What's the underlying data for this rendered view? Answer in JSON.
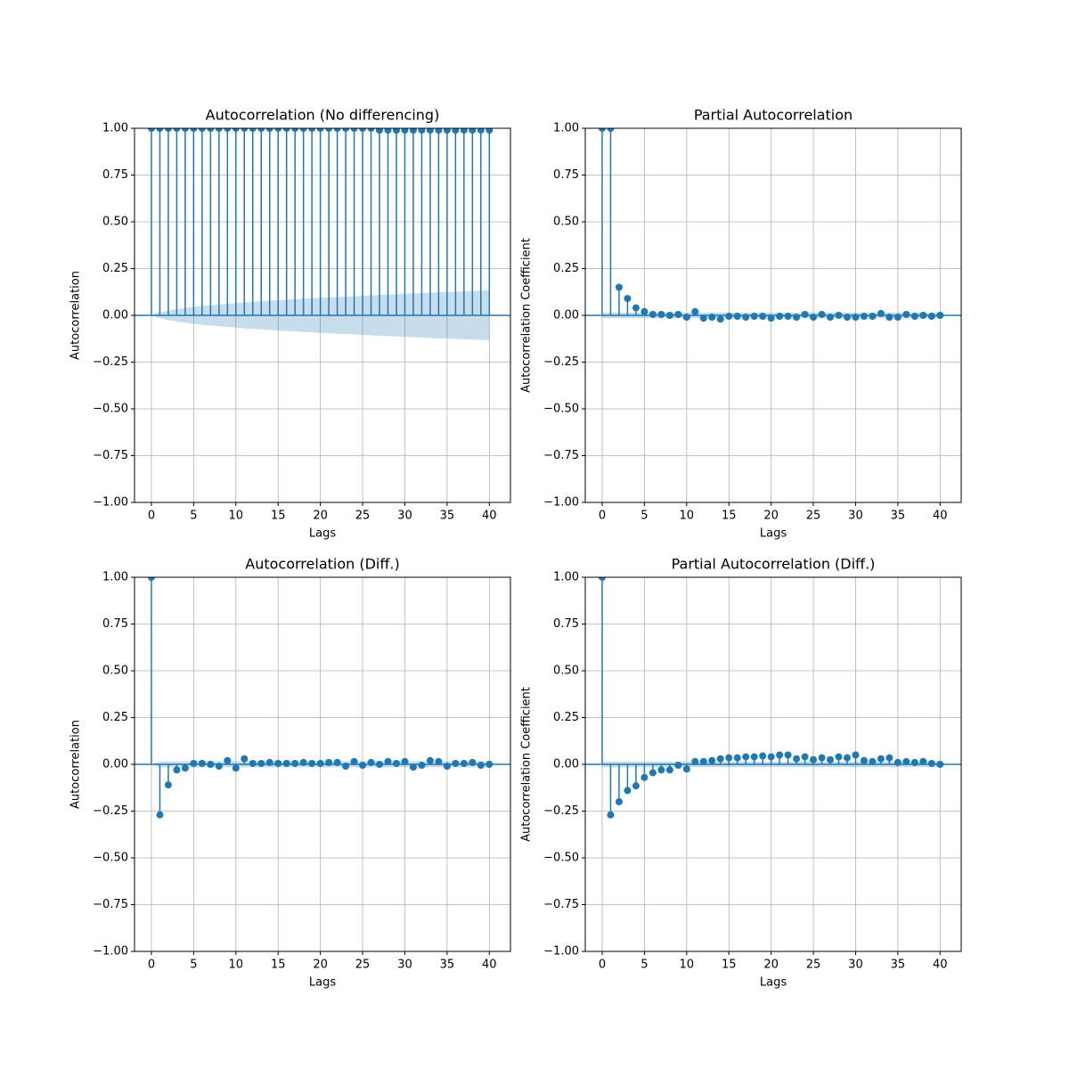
{
  "chart_data": [
    {
      "type": "stem",
      "title": "Autocorrelation (No differencing)",
      "xlabel": "Lags",
      "ylabel": "Autocorrelation",
      "x": [
        0,
        1,
        2,
        3,
        4,
        5,
        6,
        7,
        8,
        9,
        10,
        11,
        12,
        13,
        14,
        15,
        16,
        17,
        18,
        19,
        20,
        21,
        22,
        23,
        24,
        25,
        26,
        27,
        28,
        29,
        30,
        31,
        32,
        33,
        34,
        35,
        36,
        37,
        38,
        39,
        40
      ],
      "values": [
        1,
        1,
        1,
        1,
        1,
        1,
        1,
        1,
        1,
        1,
        1,
        1,
        1,
        1,
        1,
        1,
        1,
        1,
        1,
        1,
        1,
        1,
        1,
        1,
        1,
        1,
        1,
        0.99,
        0.99,
        0.99,
        0.99,
        0.99,
        0.99,
        0.99,
        0.99,
        0.99,
        0.99,
        0.99,
        0.99,
        0.99,
        0.99
      ],
      "confidence_band": [
        0,
        0.015,
        0.026,
        0.034,
        0.04,
        0.045,
        0.05,
        0.054,
        0.058,
        0.062,
        0.065,
        0.069,
        0.072,
        0.075,
        0.078,
        0.081,
        0.084,
        0.086,
        0.089,
        0.091,
        0.094,
        0.096,
        0.098,
        0.1,
        0.102,
        0.105,
        0.107,
        0.109,
        0.111,
        0.113,
        0.115,
        0.117,
        0.119,
        0.121,
        0.123,
        0.124,
        0.126,
        0.128,
        0.13,
        0.132,
        0.133
      ],
      "color": "#1f77b4",
      "grid": true,
      "xlim": [
        -2,
        42.5
      ],
      "ylim": [
        -1,
        1
      ],
      "xticks": [
        0,
        5,
        10,
        15,
        20,
        25,
        30,
        35,
        40
      ],
      "yticks": [
        {
          "value": -1,
          "label": "−1.00"
        },
        {
          "value": -0.75,
          "label": "−0.75"
        },
        {
          "value": -0.5,
          "label": "−0.50"
        },
        {
          "value": -0.25,
          "label": "−0.25"
        },
        {
          "value": 0,
          "label": "0.00"
        },
        {
          "value": 0.25,
          "label": "0.25"
        },
        {
          "value": 0.5,
          "label": "0.50"
        },
        {
          "value": 0.75,
          "label": "0.75"
        },
        {
          "value": 1,
          "label": "1.00"
        }
      ]
    },
    {
      "type": "stem",
      "title": "Partial Autocorrelation",
      "xlabel": "Lags",
      "ylabel": "Autocorrelation Coefficient",
      "x": [
        0,
        1,
        2,
        3,
        4,
        5,
        6,
        7,
        8,
        9,
        10,
        11,
        12,
        13,
        14,
        15,
        16,
        17,
        18,
        19,
        20,
        21,
        22,
        23,
        24,
        25,
        26,
        27,
        28,
        29,
        30,
        31,
        32,
        33,
        34,
        35,
        36,
        37,
        38,
        39,
        40
      ],
      "values": [
        1,
        1,
        0.15,
        0.09,
        0.04,
        0.02,
        0.005,
        0.005,
        0,
        0.005,
        -0.01,
        0.02,
        -0.015,
        -0.01,
        -0.02,
        -0.005,
        -0.005,
        -0.01,
        -0.005,
        -0.005,
        -0.015,
        -0.005,
        -0.005,
        -0.01,
        0.005,
        -0.01,
        0.005,
        -0.01,
        0,
        -0.01,
        -0.01,
        -0.005,
        -0.005,
        0.01,
        -0.01,
        -0.01,
        0.005,
        -0.005,
        0,
        -0.005,
        0
      ],
      "confidence_band": [
        0.015,
        0.015,
        0.015,
        0.015,
        0.015,
        0.015,
        0.015,
        0.015,
        0.015,
        0.015,
        0.015,
        0.015,
        0.015,
        0.015,
        0.015,
        0.015,
        0.015,
        0.015,
        0.015,
        0.015,
        0.015,
        0.015,
        0.015,
        0.015,
        0.015,
        0.015,
        0.015,
        0.015,
        0.015,
        0.015,
        0.015,
        0.015,
        0.015,
        0.015,
        0.015,
        0.015,
        0.015,
        0.015,
        0.015,
        0.015,
        0.015
      ],
      "color": "#1f77b4",
      "grid": true,
      "xlim": [
        -2,
        42.5
      ],
      "ylim": [
        -1,
        1
      ],
      "xticks": [
        0,
        5,
        10,
        15,
        20,
        25,
        30,
        35,
        40
      ],
      "yticks": [
        {
          "value": -1,
          "label": "−1.00"
        },
        {
          "value": -0.75,
          "label": "−0.75"
        },
        {
          "value": -0.5,
          "label": "−0.50"
        },
        {
          "value": -0.25,
          "label": "−0.25"
        },
        {
          "value": 0,
          "label": "0.00"
        },
        {
          "value": 0.25,
          "label": "0.25"
        },
        {
          "value": 0.5,
          "label": "0.50"
        },
        {
          "value": 0.75,
          "label": "0.75"
        },
        {
          "value": 1,
          "label": "1.00"
        }
      ]
    },
    {
      "type": "stem",
      "title": "Autocorrelation (Diff.)",
      "xlabel": "Lags",
      "ylabel": "Autocorrelation",
      "x": [
        0,
        1,
        2,
        3,
        4,
        5,
        6,
        7,
        8,
        9,
        10,
        11,
        12,
        13,
        14,
        15,
        16,
        17,
        18,
        19,
        20,
        21,
        22,
        23,
        24,
        25,
        26,
        27,
        28,
        29,
        30,
        31,
        32,
        33,
        34,
        35,
        36,
        37,
        38,
        39,
        40
      ],
      "values": [
        1,
        -0.27,
        -0.11,
        -0.03,
        -0.02,
        0.005,
        0.005,
        0,
        -0.01,
        0.02,
        -0.02,
        0.03,
        0.005,
        0.005,
        0.01,
        0.005,
        0.005,
        0.005,
        0.01,
        0.005,
        0.005,
        0.01,
        0.01,
        -0.01,
        0.015,
        -0.005,
        0.01,
        0,
        0.015,
        0.005,
        0.015,
        -0.015,
        -0.005,
        0.02,
        0.015,
        -0.01,
        0.005,
        0.005,
        0.01,
        -0.005,
        0
      ],
      "confidence_band": [
        0,
        0.015,
        0.016,
        0.016,
        0.016,
        0.016,
        0.016,
        0.016,
        0.016,
        0.016,
        0.016,
        0.016,
        0.016,
        0.016,
        0.016,
        0.016,
        0.016,
        0.016,
        0.016,
        0.016,
        0.016,
        0.016,
        0.016,
        0.016,
        0.016,
        0.016,
        0.016,
        0.016,
        0.016,
        0.016,
        0.016,
        0.016,
        0.016,
        0.016,
        0.016,
        0.016,
        0.016,
        0.016,
        0.016,
        0.016,
        0.016
      ],
      "color": "#1f77b4",
      "grid": true,
      "xlim": [
        -2,
        42.5
      ],
      "ylim": [
        -1,
        1
      ],
      "xticks": [
        0,
        5,
        10,
        15,
        20,
        25,
        30,
        35,
        40
      ],
      "yticks": [
        {
          "value": -1,
          "label": "−1.00"
        },
        {
          "value": -0.75,
          "label": "−0.75"
        },
        {
          "value": -0.5,
          "label": "−0.50"
        },
        {
          "value": -0.25,
          "label": "−0.25"
        },
        {
          "value": 0,
          "label": "0.00"
        },
        {
          "value": 0.25,
          "label": "0.25"
        },
        {
          "value": 0.5,
          "label": "0.50"
        },
        {
          "value": 0.75,
          "label": "0.75"
        },
        {
          "value": 1,
          "label": "1.00"
        }
      ]
    },
    {
      "type": "stem",
      "title": "Partial Autocorrelation (Diff.)",
      "xlabel": "Lags",
      "ylabel": "Autocorrelation Coefficient",
      "x": [
        0,
        1,
        2,
        3,
        4,
        5,
        6,
        7,
        8,
        9,
        10,
        11,
        12,
        13,
        14,
        15,
        16,
        17,
        18,
        19,
        20,
        21,
        22,
        23,
        24,
        25,
        26,
        27,
        28,
        29,
        30,
        31,
        32,
        33,
        34,
        35,
        36,
        37,
        38,
        39,
        40
      ],
      "values": [
        1,
        -0.27,
        -0.2,
        -0.14,
        -0.115,
        -0.07,
        -0.045,
        -0.03,
        -0.03,
        -0.005,
        -0.025,
        0.015,
        0.015,
        0.02,
        0.03,
        0.035,
        0.035,
        0.04,
        0.04,
        0.045,
        0.04,
        0.05,
        0.05,
        0.03,
        0.04,
        0.025,
        0.035,
        0.025,
        0.04,
        0.035,
        0.05,
        0.02,
        0.015,
        0.03,
        0.035,
        0.01,
        0.015,
        0.01,
        0.015,
        0.005,
        0
      ],
      "confidence_band": [
        0.015,
        0.015,
        0.015,
        0.015,
        0.015,
        0.015,
        0.015,
        0.015,
        0.015,
        0.015,
        0.015,
        0.015,
        0.015,
        0.015,
        0.015,
        0.015,
        0.015,
        0.015,
        0.015,
        0.015,
        0.015,
        0.015,
        0.015,
        0.015,
        0.015,
        0.015,
        0.015,
        0.015,
        0.015,
        0.015,
        0.015,
        0.015,
        0.015,
        0.015,
        0.015,
        0.015,
        0.015,
        0.015,
        0.015,
        0.015,
        0.015
      ],
      "color": "#1f77b4",
      "grid": true,
      "xlim": [
        -2,
        42.5
      ],
      "ylim": [
        -1,
        1
      ],
      "xticks": [
        0,
        5,
        10,
        15,
        20,
        25,
        30,
        35,
        40
      ],
      "yticks": [
        {
          "value": -1,
          "label": "−1.00"
        },
        {
          "value": -0.75,
          "label": "−0.75"
        },
        {
          "value": -0.5,
          "label": "−0.50"
        },
        {
          "value": -0.25,
          "label": "−0.25"
        },
        {
          "value": 0,
          "label": "0.00"
        },
        {
          "value": 0.25,
          "label": "0.25"
        },
        {
          "value": 0.5,
          "label": "0.50"
        },
        {
          "value": 0.75,
          "label": "0.75"
        },
        {
          "value": 1,
          "label": "1.00"
        }
      ]
    }
  ]
}
